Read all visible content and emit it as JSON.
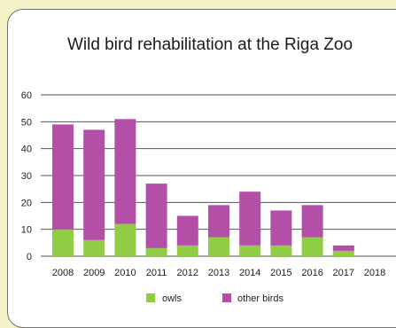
{
  "chart_data": {
    "type": "bar",
    "stacked": true,
    "title": "Wild bird rehabilitation at the Riga Zoo",
    "categories": [
      "2008",
      "2009",
      "2010",
      "2011",
      "2012",
      "2013",
      "2014",
      "2015",
      "2016",
      "2017",
      "2018"
    ],
    "series": [
      {
        "name": "owls",
        "color": "#8fcd45",
        "values": [
          10,
          6,
          12,
          3,
          4,
          7,
          4,
          4,
          7,
          2,
          0
        ]
      },
      {
        "name": "other birds",
        "color": "#b44fa7",
        "values": [
          39,
          41,
          39,
          24,
          11,
          12,
          20,
          13,
          12,
          2,
          0
        ]
      }
    ],
    "ylim": [
      0,
      60
    ],
    "yticks": [
      0,
      10,
      20,
      30,
      40,
      50,
      60
    ],
    "grid": true,
    "legend_position": "bottom"
  }
}
